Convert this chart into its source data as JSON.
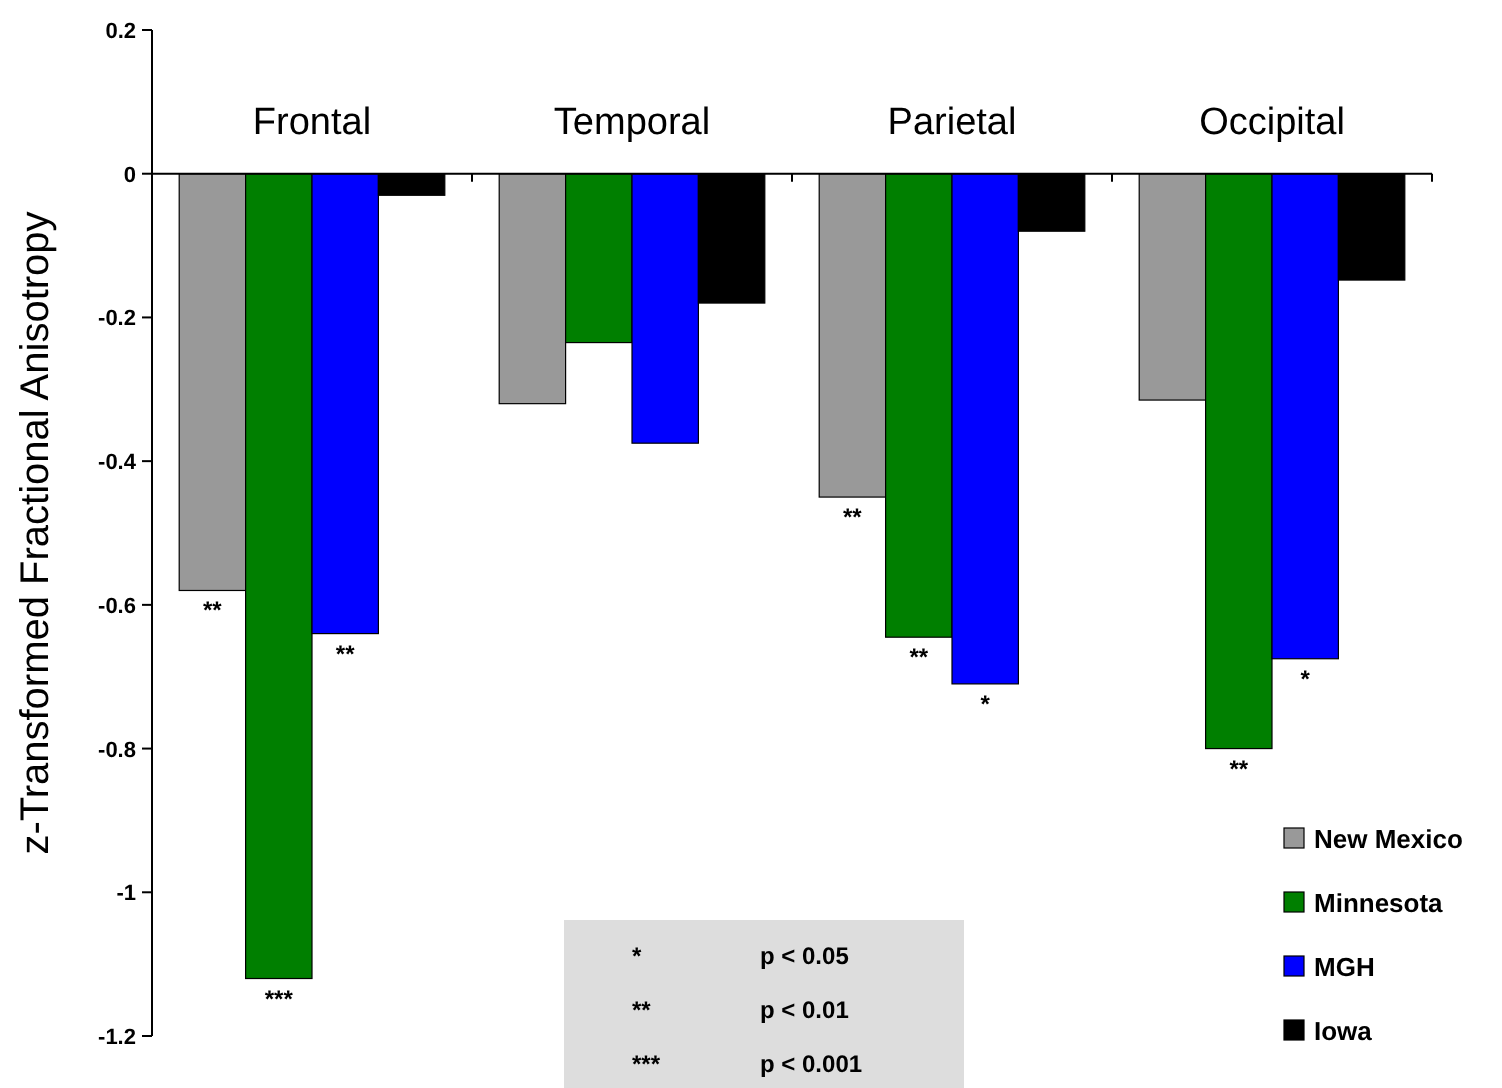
{
  "chart_data": {
    "type": "bar",
    "ylabel": "z-Transformed Fractional Anisotropy",
    "categories": [
      "Frontal",
      "Temporal",
      "Parietal",
      "Occipital"
    ],
    "series": [
      {
        "name": "New Mexico",
        "color": "#999999",
        "values": [
          -0.58,
          -0.32,
          -0.45,
          -0.315
        ],
        "value_labels": [
          "**",
          null,
          "**",
          null
        ]
      },
      {
        "name": "Minnesota",
        "color": "#007f00",
        "values": [
          -1.12,
          -0.235,
          -0.645,
          -0.8
        ],
        "value_labels": [
          "***",
          null,
          "**",
          "**"
        ]
      },
      {
        "name": "MGH",
        "color": "#0000ff",
        "values": [
          -0.64,
          -0.375,
          -0.71,
          -0.675
        ],
        "value_labels": [
          "**",
          null,
          "*",
          "*"
        ]
      },
      {
        "name": "Iowa",
        "color": "#000000",
        "values": [
          -0.03,
          -0.18,
          -0.08,
          -0.148
        ],
        "value_labels": [
          null,
          null,
          null,
          null
        ]
      }
    ],
    "ylim": [
      -1.2,
      0.2
    ],
    "yticks": [
      0.2,
      0,
      -0.2,
      -0.4,
      -0.6,
      -0.8,
      -1,
      -1.2
    ],
    "legend": "bottom right",
    "annotations": [
      "*",
      "p < 0.05",
      "**",
      "p < 0.01",
      "***",
      "p < 0.001"
    ]
  }
}
